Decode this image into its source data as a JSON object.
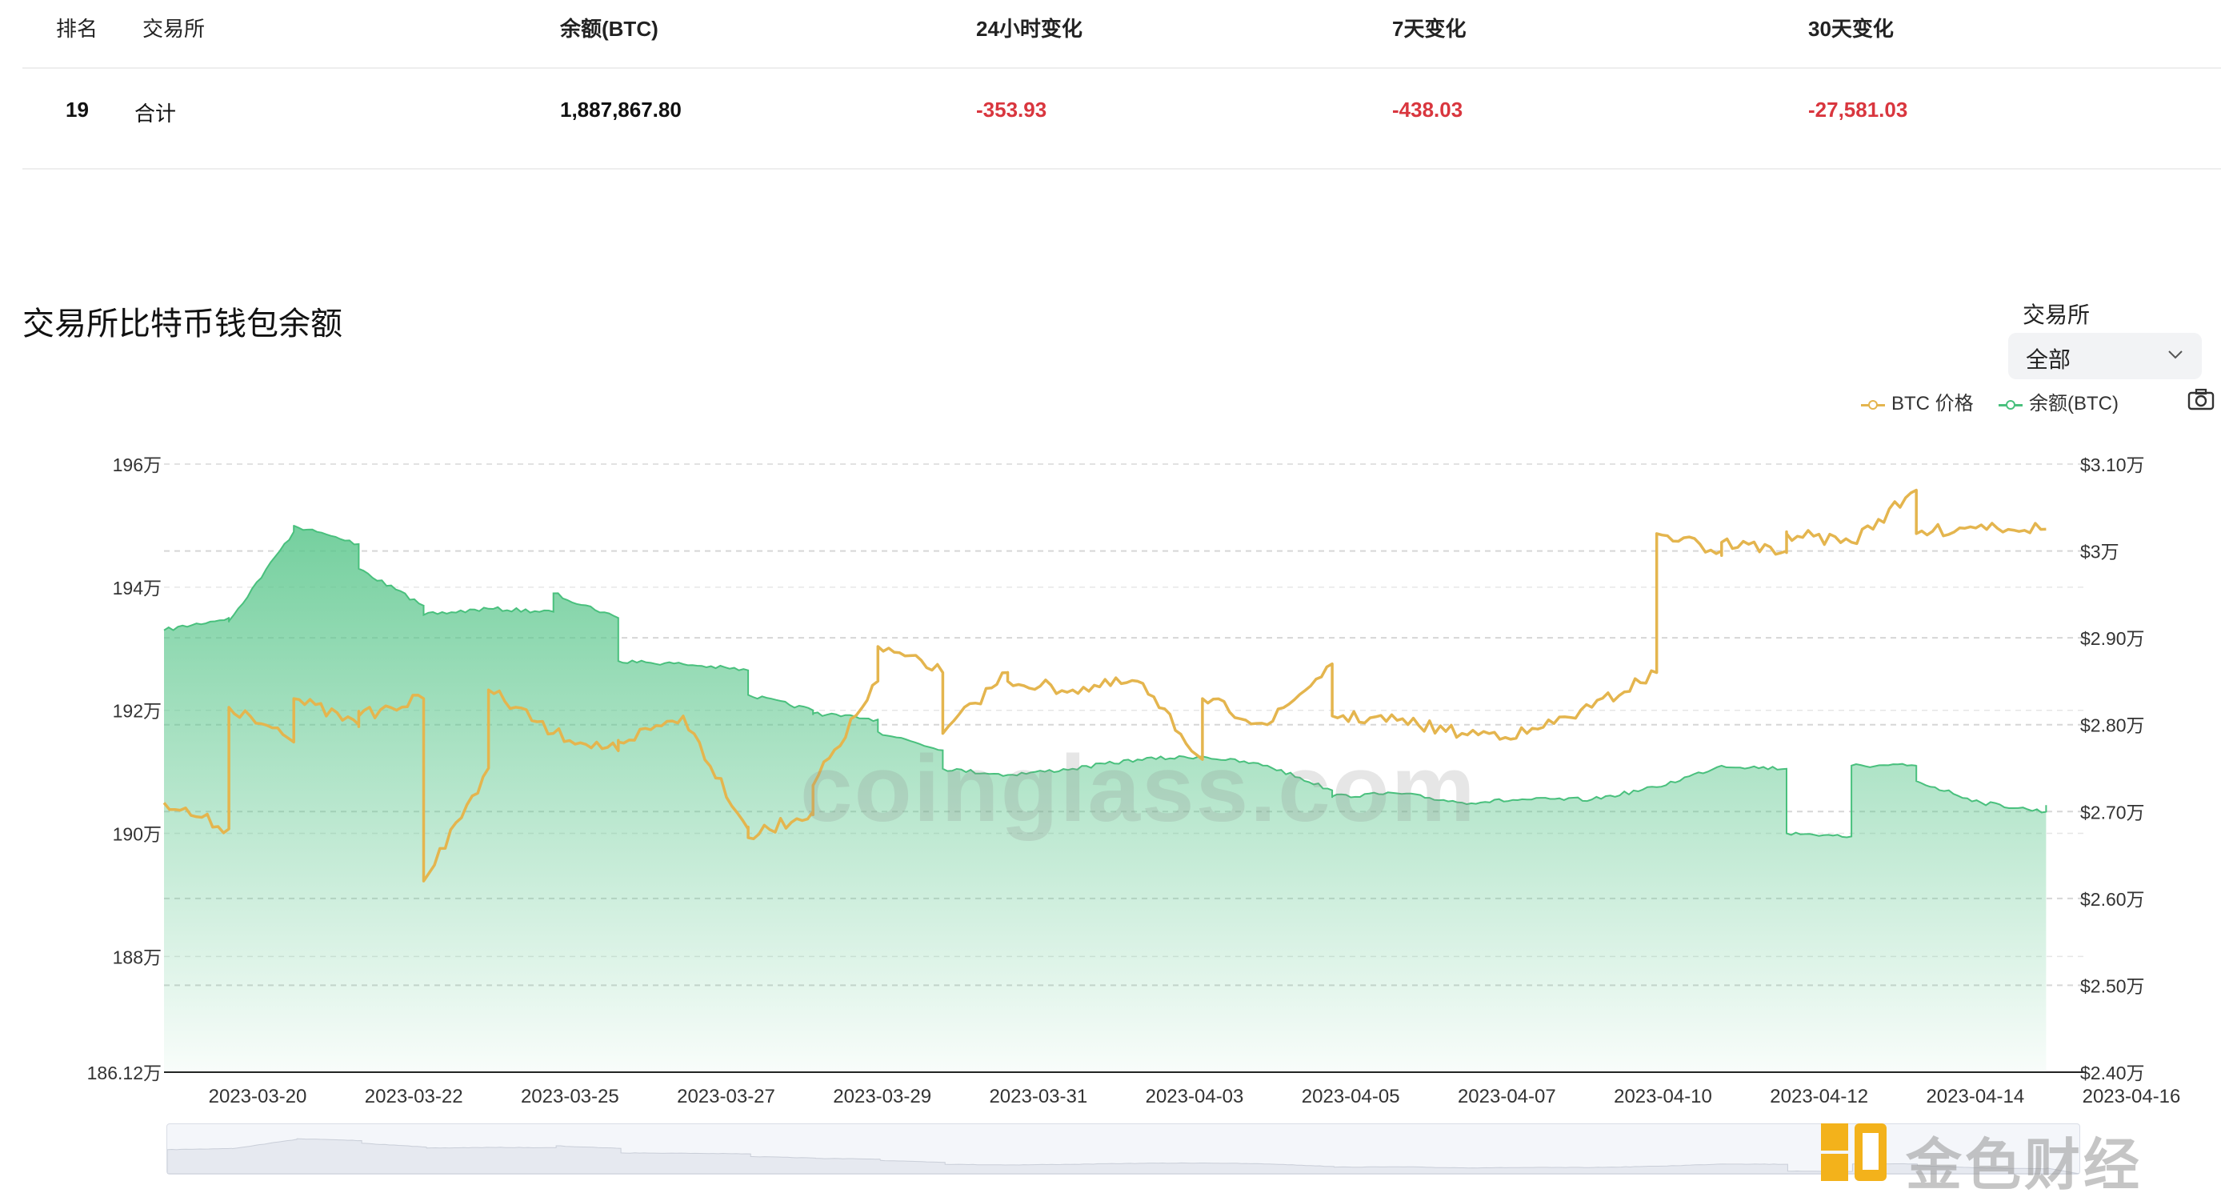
{
  "table": {
    "headers": [
      "排名",
      "交易所",
      "余额(BTC)",
      "24小时变化",
      "7天变化",
      "30天变化"
    ],
    "total_row": {
      "rank": "19",
      "exchange": "合计",
      "balance": "1,887,867.80",
      "change_24h": "-353.93",
      "change_7d": "-438.03",
      "change_30d": "-27,581.03"
    }
  },
  "chart_title": "交易所比特币钱包余额",
  "filter": {
    "label": "交易所",
    "value": "全部"
  },
  "legend": {
    "price": "BTC 价格",
    "balance": "余额(BTC)"
  },
  "watermark": "coinglass.com",
  "brand": "金色财经",
  "colors": {
    "price": "#e4b54e",
    "balance": "#49c07d",
    "negative": "#d9363e"
  },
  "chart_data": {
    "type": "area",
    "x_tick_labels": [
      "2023-03-20",
      "2023-03-22",
      "2023-03-25",
      "2023-03-27",
      "2023-03-29",
      "2023-03-31",
      "2023-04-03",
      "2023-04-05",
      "2023-04-07",
      "2023-04-10",
      "2023-04-12",
      "2023-04-14",
      "2023-04-16"
    ],
    "y_left_tick_labels": [
      "196万",
      "194万",
      "192万",
      "190万",
      "188万",
      "186.12万"
    ],
    "y_right_tick_labels": [
      "$3.10万",
      "$3万",
      "$2.90万",
      "$2.80万",
      "$2.70万",
      "$2.60万",
      "$2.50万",
      "$2.40万"
    ],
    "y_left_range": [
      1861200,
      1960000
    ],
    "y_right_range": [
      24000,
      31000
    ],
    "grid": true,
    "legend_position": "top-right",
    "series": [
      {
        "name": "余额(BTC)",
        "axis": "left",
        "style": "area",
        "x": [
          "2023-03-18",
          "2023-03-19",
          "2023-03-19",
          "2023-03-20",
          "2023-03-20",
          "2023-03-21",
          "2023-03-21",
          "2023-03-22",
          "2023-03-22",
          "2023-03-23",
          "2023-03-24",
          "2023-03-24",
          "2023-03-25",
          "2023-03-25",
          "2023-03-26",
          "2023-03-27",
          "2023-03-27",
          "2023-03-28",
          "2023-03-28",
          "2023-03-29",
          "2023-03-29",
          "2023-03-30",
          "2023-03-30",
          "2023-03-31",
          "2023-04-01",
          "2023-04-02",
          "2023-04-03",
          "2023-04-04",
          "2023-04-05",
          "2023-04-05",
          "2023-04-06",
          "2023-04-07",
          "2023-04-08",
          "2023-04-09",
          "2023-04-10",
          "2023-04-11",
          "2023-04-12",
          "2023-04-12",
          "2023-04-13",
          "2023-04-13",
          "2023-04-14",
          "2023-04-14",
          "2023-04-15",
          "2023-04-16",
          "2023-04-16"
        ],
        "values": [
          1933000,
          1935000,
          1934500,
          1949000,
          1950000,
          1947000,
          1943000,
          1937000,
          1935500,
          1936500,
          1936000,
          1939000,
          1935000,
          1928000,
          1927500,
          1926500,
          1922500,
          1920000,
          1919500,
          1918500,
          1916500,
          1913500,
          1910500,
          1909500,
          1910500,
          1912000,
          1912500,
          1911000,
          1907000,
          1906000,
          1906500,
          1905000,
          1905500,
          1905500,
          1907500,
          1911000,
          1910500,
          1900000,
          1899500,
          1911000,
          1911000,
          1908500,
          1905000,
          1903500,
          1904500
        ]
      },
      {
        "name": "BTC 价格",
        "axis": "right",
        "style": "line",
        "x": [
          "2023-03-18",
          "2023-03-19",
          "2023-03-19",
          "2023-03-20",
          "2023-03-20",
          "2023-03-21",
          "2023-03-21",
          "2023-03-22",
          "2023-03-22",
          "2023-03-23",
          "2023-03-23",
          "2023-03-24",
          "2023-03-25",
          "2023-03-25",
          "2023-03-26",
          "2023-03-27",
          "2023-03-27",
          "2023-03-28",
          "2023-03-28",
          "2023-03-29",
          "2023-03-29",
          "2023-03-30",
          "2023-03-30",
          "2023-03-31",
          "2023-03-31",
          "2023-04-01",
          "2023-04-02",
          "2023-04-03",
          "2023-04-03",
          "2023-04-04",
          "2023-04-05",
          "2023-04-05",
          "2023-04-06",
          "2023-04-07",
          "2023-04-08",
          "2023-04-09",
          "2023-04-10",
          "2023-04-10",
          "2023-04-11",
          "2023-04-11",
          "2023-04-12",
          "2023-04-12",
          "2023-04-13",
          "2023-04-14",
          "2023-04-14",
          "2023-04-15",
          "2023-04-16"
        ],
        "values": [
          27100,
          26800,
          28200,
          27800,
          28300,
          28000,
          28100,
          28300,
          26200,
          27500,
          28400,
          27900,
          27700,
          27800,
          28100,
          26800,
          26700,
          27000,
          27300,
          28500,
          28900,
          28600,
          27900,
          28600,
          28500,
          28400,
          28500,
          27600,
          28300,
          28000,
          28700,
          28100,
          28050,
          27900,
          27900,
          28200,
          28600,
          30200,
          30000,
          30100,
          30000,
          30200,
          30100,
          30700,
          30200,
          30300,
          30250
        ]
      }
    ]
  }
}
